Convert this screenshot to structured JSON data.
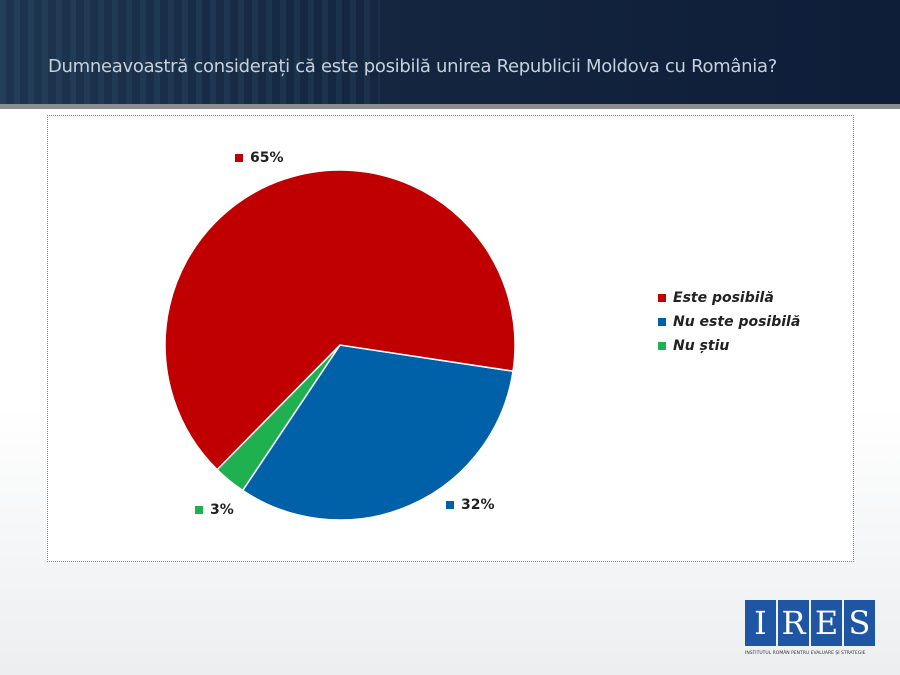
{
  "header": {
    "title": "Dumneavoastră considerați că este posibilă unirea Republicii Moldova cu România?"
  },
  "logo": {
    "letters": [
      "I",
      "R",
      "E",
      "S"
    ],
    "subtitle": "INSTITUTUL ROMÂN PENTRU EVALUARE ȘI STRATEGIE"
  },
  "chart_data": {
    "type": "pie",
    "title": "Dumneavoastră considerați că este posibilă unirea Republicii Moldova cu România?",
    "categories": [
      "Este posibilă",
      "Nu este posibilă",
      "Nu știu"
    ],
    "values": [
      65,
      32,
      3
    ],
    "data_labels": [
      "65%",
      "32%",
      "3%"
    ],
    "colors": [
      "#c00000",
      "#0060a8",
      "#1fb050"
    ],
    "legend": "right"
  }
}
